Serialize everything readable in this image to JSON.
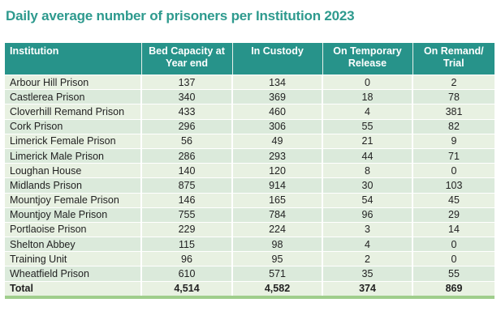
{
  "title": "Daily average number of prisoners per Institution 2023",
  "table": {
    "headers": [
      "Institution",
      "Bed Capacity at Year end",
      "In Custody",
      "On Temporary Release",
      "On Remand/ Trial"
    ],
    "rows": [
      [
        "Arbour Hill Prison",
        "137",
        "134",
        "0",
        "2"
      ],
      [
        "Castlerea Prison",
        "340",
        "369",
        "18",
        "78"
      ],
      [
        "Cloverhill Remand Prison",
        "433",
        "460",
        "4",
        "381"
      ],
      [
        "Cork Prison",
        "296",
        "306",
        "55",
        "82"
      ],
      [
        "Limerick Female Prison",
        "56",
        "49",
        "21",
        "9"
      ],
      [
        "Limerick Male Prison",
        "286",
        "293",
        "44",
        "71"
      ],
      [
        "Loughan House",
        "140",
        "120",
        "8",
        "0"
      ],
      [
        "Midlands Prison",
        "875",
        "914",
        "30",
        "103"
      ],
      [
        "Mountjoy Female Prison",
        "146",
        "165",
        "54",
        "45"
      ],
      [
        "Mountjoy Male Prison",
        "755",
        "784",
        "96",
        "29"
      ],
      [
        "Portlaoise Prison",
        "229",
        "224",
        "3",
        "14"
      ],
      [
        "Shelton Abbey",
        "115",
        "98",
        "4",
        "0"
      ],
      [
        "Training Unit",
        "96",
        "95",
        "2",
        "0"
      ],
      [
        "Wheatfield Prison",
        "610",
        "571",
        "35",
        "55"
      ]
    ],
    "total": [
      "Total",
      "4,514",
      "4,582",
      "374",
      "869"
    ]
  },
  "colors": {
    "title": "#2e9a8e",
    "header_bg": "#27938a",
    "row_light": "#e8f1e2",
    "row_dark": "#dbeadb",
    "total_border": "#9fce8c"
  }
}
